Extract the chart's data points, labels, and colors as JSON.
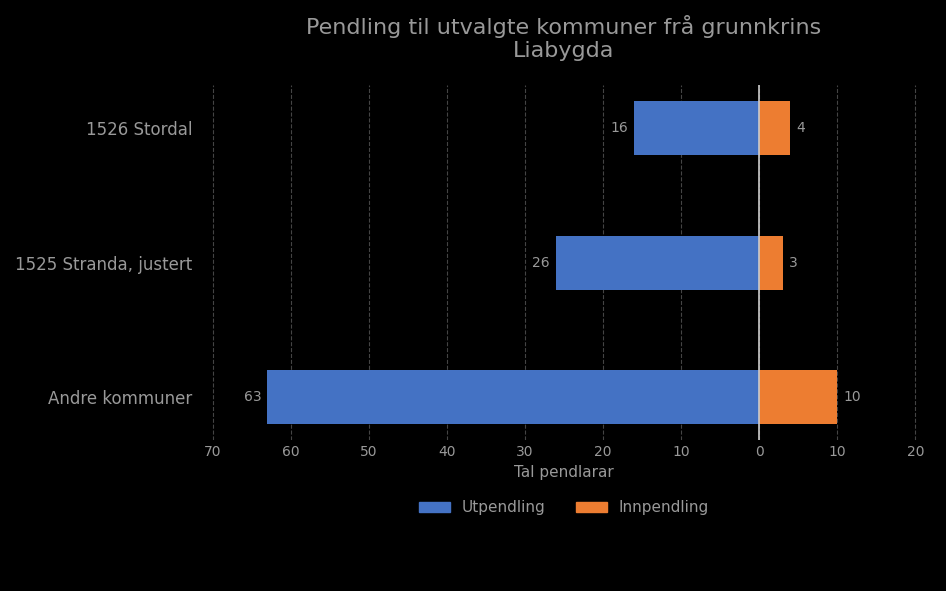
{
  "title": "Pendling til utvalgte kommuner frå grunnkrins\nLiabygda",
  "categories": [
    "Andre kommuner",
    "1525 Stranda, justert",
    "1526 Stordal"
  ],
  "utpendling": [
    63,
    26,
    16
  ],
  "innpendling": [
    10,
    3,
    4
  ],
  "utpendling_color": "#4472C4",
  "innpendling_color": "#ED7D31",
  "xlabel": "Tal pendlarar",
  "xlim_left": -72,
  "xlim_right": 22,
  "xticks": [
    -70,
    -60,
    -50,
    -40,
    -30,
    -20,
    -10,
    0,
    10,
    20
  ],
  "xticklabels": [
    "70",
    "60",
    "50",
    "40",
    "30",
    "20",
    "10",
    "0",
    "10",
    "20"
  ],
  "background_color": "#000000",
  "text_color": "#999999",
  "title_color": "#999999",
  "bar_height": 0.4,
  "legend_utpendling": "Utpendling",
  "legend_innpendling": "Innpendling",
  "grid_color": "#444444",
  "zero_line_color": "#CCCCCC"
}
